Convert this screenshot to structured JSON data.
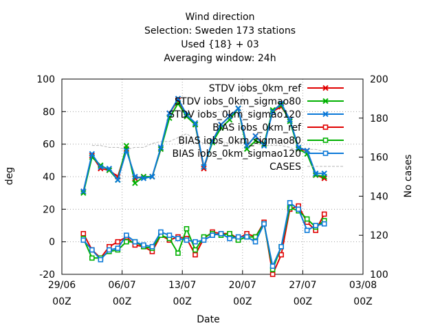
{
  "chart_data": {
    "type": "line",
    "title_lines": [
      "Wind direction",
      "Selection: Sweden    173 stations",
      "Used {18} + 03",
      "Averaging window: 24h"
    ],
    "xlabel": "Date",
    "ylabel": "deg",
    "y2label": "No cases",
    "xlim": [
      "2013-06-29T00:00",
      "2013-08-03T00:00"
    ],
    "x_ticks": [
      {
        "date": "2013-06-29",
        "label1": "29/06",
        "label2": "00Z"
      },
      {
        "date": "2013-07-06",
        "label1": "06/07",
        "label2": "00Z"
      },
      {
        "date": "2013-07-13",
        "label1": "13/07",
        "label2": "00Z"
      },
      {
        "date": "2013-07-20",
        "label1": "20/07",
        "label2": "00Z"
      },
      {
        "date": "2013-07-27",
        "label1": "27/07",
        "label2": "00Z"
      },
      {
        "date": "2013-08-03",
        "label1": "03/08",
        "label2": "00Z"
      }
    ],
    "ylim": [
      -20,
      100
    ],
    "y_ticks": [
      -20,
      0,
      20,
      40,
      60,
      80,
      100
    ],
    "y2lim": [
      100,
      200
    ],
    "y2_ticks": [
      100,
      120,
      140,
      160,
      180,
      200
    ],
    "grid": true,
    "legend_position": "top-right",
    "dates": [
      "2013-07-01",
      "2013-07-02",
      "2013-07-03",
      "2013-07-04",
      "2013-07-05",
      "2013-07-06",
      "2013-07-07",
      "2013-07-08",
      "2013-07-09",
      "2013-07-10",
      "2013-07-11",
      "2013-07-12",
      "2013-07-13",
      "2013-07-14",
      "2013-07-15",
      "2013-07-16",
      "2013-07-17",
      "2013-07-18",
      "2013-07-19",
      "2013-07-20",
      "2013-07-21",
      "2013-07-22",
      "2013-07-23",
      "2013-07-24",
      "2013-07-25",
      "2013-07-26",
      "2013-07-27",
      "2013-07-28",
      "2013-07-29",
      "2013-07-30"
    ],
    "series": [
      {
        "name": "STDV iobs_0km_ref",
        "axis": "y1",
        "marker": "x",
        "color": "#e00000",
        "values": [
          31,
          53,
          45,
          44,
          40,
          57,
          39,
          40,
          40,
          57,
          79,
          87,
          77,
          72,
          45,
          62,
          72,
          77,
          82,
          59,
          65,
          60,
          80,
          83,
          75,
          57,
          56,
          41,
          39,
          null
        ]
      },
      {
        "name": "STDV iobs_0km_sigmao80",
        "axis": "y1",
        "marker": "x",
        "color": "#00b000",
        "values": [
          30,
          52,
          47,
          44,
          38,
          59,
          36,
          40,
          40,
          57,
          76,
          85,
          77,
          72,
          46,
          61,
          70,
          75,
          82,
          57,
          62,
          60,
          81,
          84,
          74,
          57,
          54,
          41,
          40,
          null
        ]
      },
      {
        "name": "STDV iobs_0km_sigmao120",
        "axis": "y1",
        "marker": "x",
        "color": "#0a78d8",
        "values": [
          31,
          54,
          46,
          45,
          38,
          56,
          40,
          39,
          40,
          58,
          79,
          88,
          78,
          73,
          46,
          62,
          72,
          77,
          82,
          59,
          65,
          59,
          80,
          85,
          75,
          58,
          56,
          42,
          42,
          null
        ]
      },
      {
        "name": "BIAS iobs_0km_ref",
        "axis": "y1",
        "marker": "square",
        "color": "#e00000",
        "values": [
          5,
          -5,
          -10,
          -3,
          0,
          3,
          -2,
          -3,
          -6,
          4,
          1,
          3,
          2,
          -8,
          2,
          6,
          5,
          5,
          2,
          5,
          3,
          12,
          -20,
          -8,
          20,
          22,
          12,
          7,
          17,
          null
        ]
      },
      {
        "name": "BIAS iobs_0km_sigmao80",
        "axis": "y1",
        "marker": "square",
        "color": "#00b000",
        "values": [
          2,
          -10,
          -10,
          -6,
          -5,
          0,
          0,
          -3,
          -4,
          4,
          2,
          -7,
          8,
          -5,
          3,
          5,
          4,
          5,
          1,
          3,
          3,
          11,
          -17,
          -3,
          21,
          19,
          14,
          9,
          13,
          null
        ]
      },
      {
        "name": "BIAS iobs_0km_sigmao120",
        "axis": "y1",
        "marker": "square",
        "color": "#0a78d8",
        "values": [
          1,
          -5,
          -11,
          -5,
          -4,
          4,
          0,
          -2,
          -3,
          6,
          4,
          2,
          1,
          0,
          1,
          4,
          5,
          2,
          3,
          3,
          0,
          11,
          -15,
          -3,
          24,
          20,
          7,
          10,
          11,
          null
        ]
      },
      {
        "name": "CASES",
        "axis": "y2",
        "marker": "none",
        "color": "#b4b4b4",
        "values": [
          null,
          166,
          166,
          165,
          165,
          164,
          165,
          165,
          167,
          168,
          168,
          170,
          172,
          169,
          167,
          167,
          168,
          167,
          168,
          167,
          167,
          166,
          166,
          166,
          165,
          163,
          164,
          164,
          163,
          162
        ]
      }
    ]
  }
}
